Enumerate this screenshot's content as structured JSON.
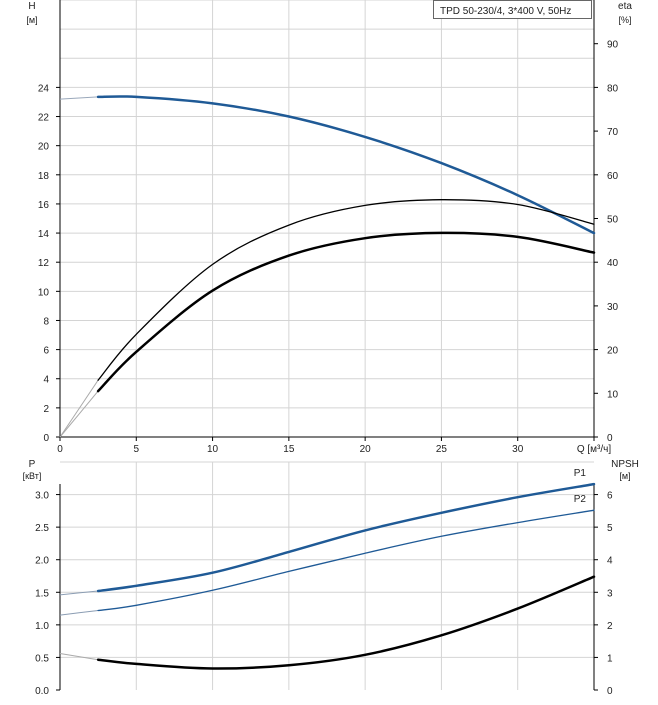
{
  "colors": {
    "grid": "#d4d4d4",
    "axis": "#000000",
    "head_curve": "#1f5a96",
    "power_curve": "#1f5a96",
    "efficiency_curve": "#000000",
    "npsh_curve": "#000000",
    "text": "#222222",
    "label_blue": "#1f5a96"
  },
  "chart_data": [
    {
      "type": "line",
      "title": "TPD 50-230/4, 3*400 V, 50Hz",
      "xlabel": "Q [м³/ч]",
      "ylabel": "H [м]",
      "ylabel_unit": "[м]",
      "ylabel_name": "H",
      "y2label_name": "eta",
      "y2label_unit": "[%]",
      "xlim": [
        0,
        35
      ],
      "ylim": [
        0,
        30
      ],
      "y2lim": [
        0,
        100
      ],
      "x_ticks": [
        0,
        5,
        10,
        15,
        20,
        25,
        30
      ],
      "x_tick_labels": [
        "0",
        "5",
        "10",
        "15",
        "20",
        "25",
        "30"
      ],
      "y_ticks": [
        0,
        2,
        4,
        6,
        8,
        10,
        12,
        14,
        16,
        18,
        20,
        22,
        24
      ],
      "y_tick_labels": [
        "0",
        "2",
        "4",
        "6",
        "8",
        "10",
        "12",
        "14",
        "16",
        "18",
        "20",
        "22",
        "24"
      ],
      "y2_ticks": [
        0,
        10,
        20,
        30,
        40,
        50,
        60,
        70,
        80,
        90
      ],
      "y2_tick_labels": [
        "0",
        "10",
        "20",
        "30",
        "40",
        "50",
        "60",
        "70",
        "80",
        "90"
      ],
      "grid": true,
      "series": [
        {
          "role": "head",
          "axis": "left",
          "thin": [
            [
              0,
              23.2
            ],
            [
              2.5,
              23.35
            ]
          ],
          "thick": [
            [
              2.5,
              23.35
            ],
            [
              5,
              23.35
            ],
            [
              10,
              22.9
            ],
            [
              15,
              22.0
            ],
            [
              20,
              20.6
            ],
            [
              25,
              18.8
            ],
            [
              30,
              16.6
            ],
            [
              35,
              14.0
            ]
          ]
        },
        {
          "role": "eta-upper",
          "axis": "right",
          "thin": [
            [
              0,
              0
            ],
            [
              2.5,
              13.0
            ]
          ],
          "thick": [
            [
              2.5,
              13.0
            ],
            [
              5,
              23.5
            ],
            [
              10,
              39.5
            ],
            [
              15,
              48.5
            ],
            [
              20,
              53
            ],
            [
              25,
              54.3
            ],
            [
              30,
              53.2
            ],
            [
              35,
              48.7
            ]
          ]
        },
        {
          "role": "eta",
          "axis": "right",
          "thin": [
            [
              0,
              0
            ],
            [
              2.5,
              10.5
            ]
          ],
          "thick": [
            [
              2.5,
              10.5
            ],
            [
              5,
              19.5
            ],
            [
              10,
              33.5
            ],
            [
              15,
              41.5
            ],
            [
              20,
              45.5
            ],
            [
              25,
              46.7
            ],
            [
              30,
              45.8
            ],
            [
              35,
              42.2
            ]
          ]
        }
      ]
    },
    {
      "type": "line",
      "xlim": [
        0,
        35
      ],
      "ylim": [
        0,
        3.5
      ],
      "y2lim": [
        0,
        7
      ],
      "ylabel_name": "P",
      "ylabel_unit": "[кВт]",
      "y2label_name": "NPSH",
      "y2label_unit": "[м]",
      "y_ticks": [
        0,
        0.5,
        1.0,
        1.5,
        2.0,
        2.5,
        3.0
      ],
      "y_tick_labels": [
        "0.0",
        "0.5",
        "1.0",
        "1.5",
        "2.0",
        "2.5",
        "3.0"
      ],
      "y2_ticks": [
        0,
        1,
        2,
        3,
        4,
        5,
        6
      ],
      "y2_tick_labels": [
        "0",
        "1",
        "2",
        "3",
        "4",
        "5",
        "6"
      ],
      "grid": true,
      "series": [
        {
          "name": "P1",
          "role": "power",
          "axis": "left",
          "thin": [
            [
              0,
              1.46
            ],
            [
              2.5,
              1.52
            ]
          ],
          "thick": [
            [
              2.5,
              1.52
            ],
            [
              5,
              1.6
            ],
            [
              10,
              1.8
            ],
            [
              15,
              2.12
            ],
            [
              20,
              2.45
            ],
            [
              25,
              2.72
            ],
            [
              30,
              2.96
            ],
            [
              35,
              3.16
            ]
          ]
        },
        {
          "name": "P2",
          "role": "power2",
          "axis": "left",
          "thin": [
            [
              0,
              1.15
            ],
            [
              2.5,
              1.22
            ]
          ],
          "thick": [
            [
              2.5,
              1.22
            ],
            [
              5,
              1.3
            ],
            [
              10,
              1.53
            ],
            [
              15,
              1.82
            ],
            [
              20,
              2.1
            ],
            [
              25,
              2.36
            ],
            [
              30,
              2.57
            ],
            [
              35,
              2.76
            ]
          ]
        },
        {
          "role": "npsh",
          "axis": "right",
          "thin": [
            [
              0,
              1.12
            ],
            [
              2.5,
              0.93
            ]
          ],
          "thick": [
            [
              2.5,
              0.93
            ],
            [
              5,
              0.8
            ],
            [
              10,
              0.66
            ],
            [
              15,
              0.76
            ],
            [
              20,
              1.08
            ],
            [
              25,
              1.68
            ],
            [
              30,
              2.5
            ],
            [
              35,
              3.48
            ]
          ]
        }
      ]
    }
  ]
}
